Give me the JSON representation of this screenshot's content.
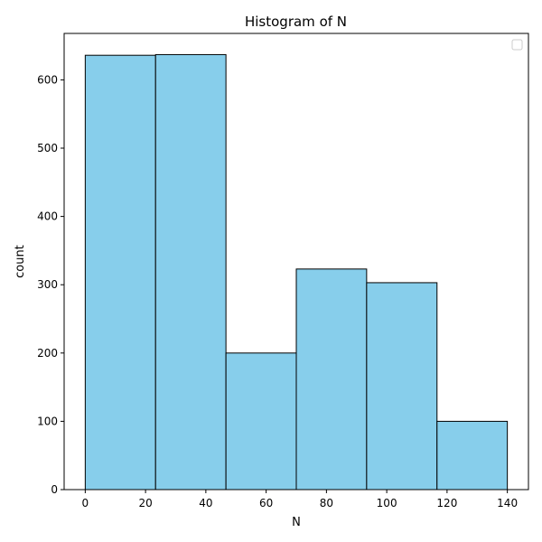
{
  "chart_data": {
    "type": "bar",
    "title": "Histogram of N",
    "xlabel": "N",
    "ylabel": "count",
    "bins": [
      {
        "x0": 0,
        "x1": 23.33,
        "count": 636
      },
      {
        "x0": 23.33,
        "x1": 46.67,
        "count": 637
      },
      {
        "x0": 46.67,
        "x1": 70,
        "count": 200
      },
      {
        "x0": 70,
        "x1": 93.33,
        "count": 323
      },
      {
        "x0": 93.33,
        "x1": 116.67,
        "count": 303
      },
      {
        "x0": 116.67,
        "x1": 140,
        "count": 100
      }
    ],
    "xlim": [
      -7,
      147
    ],
    "ylim": [
      0,
      668
    ],
    "xticks": [
      0,
      20,
      40,
      60,
      80,
      100,
      120,
      140
    ],
    "yticks": [
      0,
      100,
      200,
      300,
      400,
      500,
      600
    ],
    "grid": false,
    "legend": "top-right",
    "legend_entries": [],
    "colors": {
      "bar_fill": "#87ceeb",
      "bar_edge": "#000000",
      "axis": "#000000"
    }
  }
}
